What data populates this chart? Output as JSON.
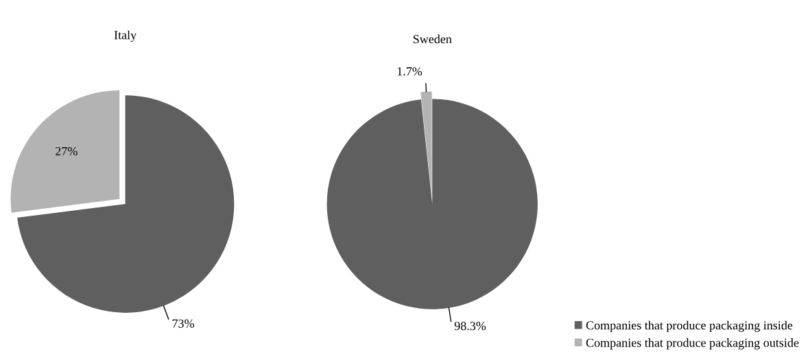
{
  "chart_data": [
    {
      "type": "pie",
      "title": "Italy",
      "categories": [
        "Companies that produce packaging inside",
        "Companies that produce packaging outside"
      ],
      "values": [
        73,
        27
      ],
      "colors": [
        "#5f5f5f",
        "#b3b3b3"
      ],
      "value_labels": [
        "73%",
        "27%"
      ],
      "legend": "bottom right"
    },
    {
      "type": "pie",
      "title": "Sweden",
      "categories": [
        null,
        null
      ],
      "values": [
        98.3,
        1.7
      ],
      "colors": [
        "#5f5f5f",
        "#b3b3b3"
      ],
      "value_labels": [
        "98.3%",
        "1.7%"
      ],
      "legend": false
    }
  ]
}
